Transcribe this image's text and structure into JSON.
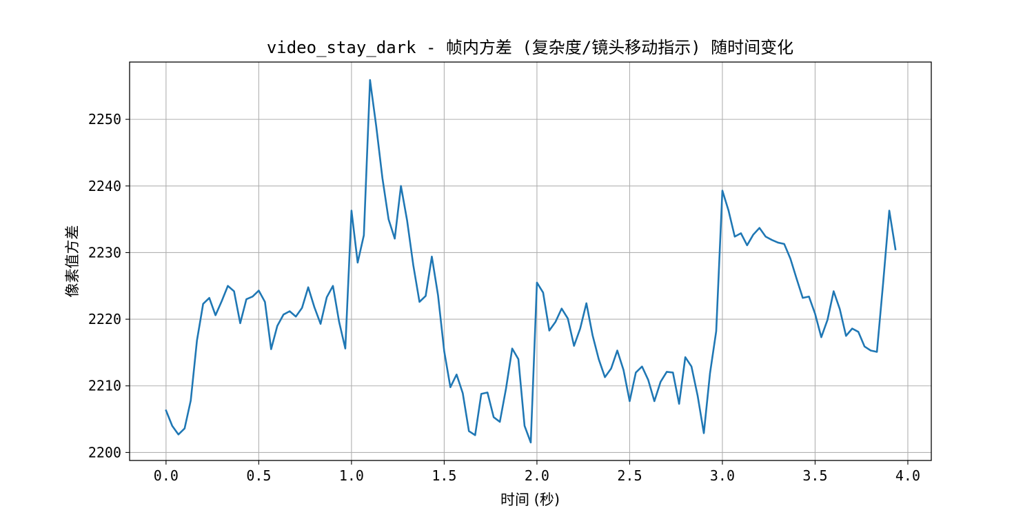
{
  "chart_data": {
    "type": "line",
    "title": "video_stay_dark - 帧内方差 (复杂度/镜头移动指示) 随时间变化",
    "xlabel": "时间 (秒)",
    "ylabel": "像素值方差",
    "xlim": [
      -0.1965,
      4.1265
    ],
    "ylim": [
      2198.8,
      2258.6
    ],
    "x_ticks": [
      0.0,
      0.5,
      1.0,
      1.5,
      2.0,
      2.5,
      3.0,
      3.5,
      4.0
    ],
    "x_tick_labels": [
      "0.0",
      "0.5",
      "1.0",
      "1.5",
      "2.0",
      "2.5",
      "3.0",
      "3.5",
      "4.0"
    ],
    "y_ticks": [
      2200,
      2210,
      2220,
      2230,
      2240,
      2250
    ],
    "y_tick_labels": [
      "2200",
      "2210",
      "2220",
      "2230",
      "2240",
      "2250"
    ],
    "grid": true,
    "line_color": "#1f77b4",
    "series": [
      {
        "x": [
          0.0,
          0.0333,
          0.0667,
          0.1,
          0.1333,
          0.1667,
          0.2,
          0.2333,
          0.2667,
          0.3,
          0.3333,
          0.3667,
          0.4,
          0.4333,
          0.4667,
          0.5,
          0.5333,
          0.5667,
          0.6,
          0.6333,
          0.6667,
          0.7,
          0.7333,
          0.7667,
          0.8,
          0.8333,
          0.8667,
          0.9,
          0.9333,
          0.9667,
          1.0,
          1.0333,
          1.0667,
          1.1,
          1.1333,
          1.1667,
          1.2,
          1.2333,
          1.2667,
          1.3,
          1.3333,
          1.3667,
          1.4,
          1.4333,
          1.4667,
          1.5,
          1.5333,
          1.5667,
          1.6,
          1.6333,
          1.6667,
          1.7,
          1.7333,
          1.7667,
          1.8,
          1.8333,
          1.8667,
          1.9,
          1.9333,
          1.9667,
          2.0,
          2.0333,
          2.0667,
          2.1,
          2.1333,
          2.1667,
          2.2,
          2.2333,
          2.2667,
          2.3,
          2.3333,
          2.3667,
          2.4,
          2.4333,
          2.4667,
          2.5,
          2.5333,
          2.5667,
          2.6,
          2.6333,
          2.6667,
          2.7,
          2.7333,
          2.7667,
          2.8,
          2.8333,
          2.8667,
          2.9,
          2.9333,
          2.9667,
          3.0,
          3.0333,
          3.0667,
          3.1,
          3.1333,
          3.1667,
          3.2,
          3.2333,
          3.2667,
          3.3,
          3.3333,
          3.3667,
          3.4,
          3.4333,
          3.4667,
          3.5,
          3.5333,
          3.5667,
          3.6,
          3.6333,
          3.6667,
          3.7,
          3.7333,
          3.7667,
          3.8,
          3.8333,
          3.8667,
          3.9,
          3.9333
        ],
        "values": [
          2206.3,
          2204.0,
          2202.7,
          2203.6,
          2207.8,
          2216.8,
          2222.3,
          2223.2,
          2220.6,
          2222.7,
          2225.0,
          2224.2,
          2219.4,
          2223.0,
          2223.4,
          2224.3,
          2222.6,
          2215.5,
          2219.0,
          2220.7,
          2221.2,
          2220.4,
          2221.7,
          2224.8,
          2221.8,
          2219.3,
          2223.3,
          2225.0,
          2219.6,
          2215.6,
          2236.3,
          2228.5,
          2232.6,
          2255.9,
          2249.0,
          2241.2,
          2235.0,
          2232.1,
          2240.0,
          2234.8,
          2228.1,
          2222.6,
          2223.5,
          2229.4,
          2223.6,
          2215.2,
          2209.8,
          2211.7,
          2208.9,
          2203.2,
          2202.6,
          2208.8,
          2209.0,
          2205.3,
          2204.6,
          2209.6,
          2215.6,
          2214.0,
          2204.0,
          2201.5,
          2225.5,
          2224.0,
          2218.3,
          2219.6,
          2221.6,
          2220.1,
          2216.0,
          2218.6,
          2222.4,
          2217.6,
          2214.0,
          2211.3,
          2212.6,
          2215.3,
          2212.4,
          2207.7,
          2212.0,
          2212.9,
          2210.9,
          2207.7,
          2210.6,
          2212.1,
          2212.0,
          2207.3,
          2214.3,
          2212.9,
          2208.5,
          2202.9,
          2211.9,
          2218.2,
          2239.3,
          2236.3,
          2232.4,
          2232.9,
          2231.1,
          2232.7,
          2233.7,
          2232.4,
          2231.9,
          2231.5,
          2231.3,
          2229.1,
          2226.1,
          2223.2,
          2223.4,
          2220.8,
          2217.3,
          2219.9,
          2224.2,
          2221.5,
          2217.5,
          2218.6,
          2218.1,
          2215.9,
          2215.3,
          2215.1,
          2225.4,
          2236.3,
          2230.5
        ]
      }
    ]
  }
}
